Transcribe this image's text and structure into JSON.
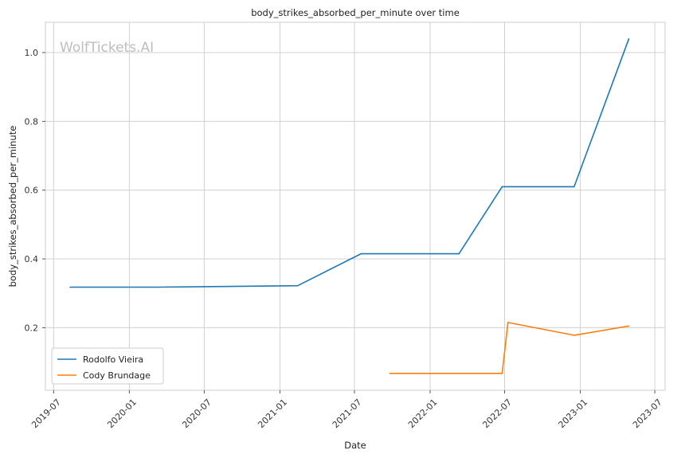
{
  "chart_data": {
    "type": "line",
    "title": "body_strikes_absorbed_per_minute over time",
    "xlabel": "Date",
    "ylabel": "body_strikes_absorbed_per_minute",
    "watermark": "WolfTickets.AI",
    "grid": true,
    "legend_position": "lower-left",
    "xlim": [
      "2019-06-11",
      "2023-07-26"
    ],
    "ylim": [
      0.018,
      1.088
    ],
    "x_ticks": [
      "2019-07",
      "2020-01",
      "2020-07",
      "2021-01",
      "2021-07",
      "2022-01",
      "2022-07",
      "2023-01",
      "2023-07"
    ],
    "y_ticks": [
      0.2,
      0.4,
      0.6,
      0.8,
      1.0
    ],
    "y_tick_labels": [
      "0.2",
      "0.4",
      "0.6",
      "0.8",
      "1.0"
    ],
    "series": [
      {
        "name": "Rodolfo Vieira",
        "color": "#1f77b4",
        "points": [
          {
            "x": "2019-08-10",
            "y": 0.318
          },
          {
            "x": "2020-03-07",
            "y": 0.318
          },
          {
            "x": "2021-02-13",
            "y": 0.322
          },
          {
            "x": "2021-07-17",
            "y": 0.415
          },
          {
            "x": "2022-03-12",
            "y": 0.415
          },
          {
            "x": "2022-06-25",
            "y": 0.61
          },
          {
            "x": "2022-12-17",
            "y": 0.61
          },
          {
            "x": "2023-04-29",
            "y": 1.04
          }
        ]
      },
      {
        "name": "Cody Brundage",
        "color": "#ff7f0e",
        "points": [
          {
            "x": "2021-09-25",
            "y": 0.067
          },
          {
            "x": "2022-06-25",
            "y": 0.067
          },
          {
            "x": "2022-07-09",
            "y": 0.215
          },
          {
            "x": "2022-12-17",
            "y": 0.178
          },
          {
            "x": "2023-04-29",
            "y": 0.205
          }
        ]
      }
    ]
  }
}
